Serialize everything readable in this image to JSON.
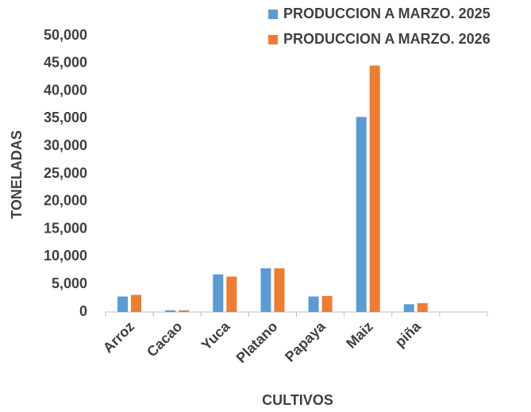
{
  "chart_data": {
    "type": "bar",
    "xlabel": "CULTIVOS",
    "ylabel": "TONELADAS",
    "categories": [
      "Arroz",
      "Cacao",
      "Yuca",
      "Platano",
      "Papaya",
      "Maiz",
      "piña",
      null
    ],
    "series": [
      {
        "name": "PRODUCCION A MARZO. 2025",
        "color": "#5b9bd5",
        "values": [
          2800,
          300,
          6800,
          7900,
          2800,
          35300,
          1400,
          null
        ]
      },
      {
        "name": "PRODUCCION A MARZO. 2026",
        "color": "#ed7d31",
        "values": [
          3100,
          300,
          6400,
          7900,
          2900,
          44600,
          1600,
          null
        ]
      }
    ],
    "ylim": [
      0,
      50000
    ],
    "yticks": [
      0,
      {
        "value": 5000,
        "label": "5,000"
      },
      {
        "value": 10000,
        "label": "10,000"
      },
      {
        "value": 15000,
        "label": "15,000"
      },
      {
        "value": 20000,
        "label": "20,000"
      },
      {
        "value": 25000,
        "label": "25,000"
      },
      {
        "value": 30000,
        "label": "30,000"
      },
      {
        "value": 35000,
        "label": "35,000"
      },
      {
        "value": 40000,
        "label": "40,000"
      },
      {
        "value": 45000,
        "label": "45,000"
      },
      {
        "value": 50000,
        "label": "50,000"
      }
    ],
    "grid": false,
    "legend": "top-right"
  }
}
